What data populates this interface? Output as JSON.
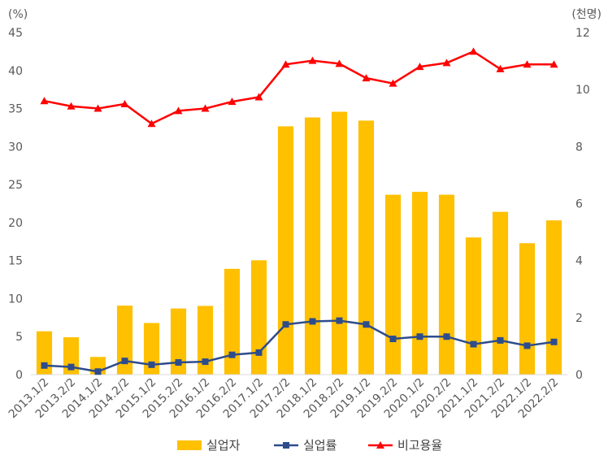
{
  "chart_data": {
    "type": "bar+line",
    "categories": [
      "2013.1/2",
      "2013.2/2",
      "2014.1/2",
      "2014.2/2",
      "2015.1/2",
      "2015.2/2",
      "2016.1/2",
      "2016.2/2",
      "2017.1/2",
      "2017.2/2",
      "2018.1/2",
      "2018.2/2",
      "2019.1/2",
      "2019.2/2",
      "2020.1/2",
      "2020.2/2",
      "2021.1/2",
      "2021.2/2",
      "2022.1/2",
      "2022.2/2"
    ],
    "left_axis": {
      "unit_label": "(%)",
      "ylim": [
        0,
        45
      ],
      "ticks": [
        0,
        5,
        10,
        15,
        20,
        25,
        30,
        35,
        40,
        45
      ]
    },
    "right_axis": {
      "unit_label": "(천명)",
      "ylim": [
        0,
        12
      ],
      "ticks": [
        0,
        2,
        4,
        6,
        8,
        10,
        12
      ]
    },
    "series": [
      {
        "name": "실업자",
        "type": "bar",
        "axis": "right",
        "color": "#FFC000",
        "values": [
          1.52,
          1.31,
          0.62,
          2.42,
          1.81,
          2.32,
          2.41,
          3.71,
          4.01,
          8.71,
          9.02,
          9.22,
          8.91,
          6.31,
          6.41,
          6.31,
          4.81,
          5.71,
          4.61,
          5.41
        ]
      },
      {
        "name": "실업률",
        "type": "line",
        "axis": "left",
        "color": "#2E4C8C",
        "marker": "square",
        "values": [
          1.2,
          1.0,
          0.4,
          1.8,
          1.3,
          1.6,
          1.7,
          2.6,
          2.9,
          6.6,
          7.0,
          7.1,
          6.6,
          4.7,
          5.0,
          5.0,
          4.0,
          4.5,
          3.8,
          4.3
        ]
      },
      {
        "name": "비고용율",
        "type": "line",
        "axis": "left",
        "color": "#FF0000",
        "marker": "triangle",
        "values": [
          36.0,
          35.3,
          35.0,
          35.6,
          33.0,
          34.7,
          35.0,
          35.9,
          36.5,
          40.8,
          41.3,
          40.9,
          39.0,
          38.3,
          40.5,
          41.0,
          42.5,
          40.2,
          40.8,
          40.8
        ]
      }
    ],
    "legend": {
      "position": "bottom",
      "entries": [
        "실업자",
        "실업률",
        "비고용율"
      ]
    },
    "grid": false
  }
}
